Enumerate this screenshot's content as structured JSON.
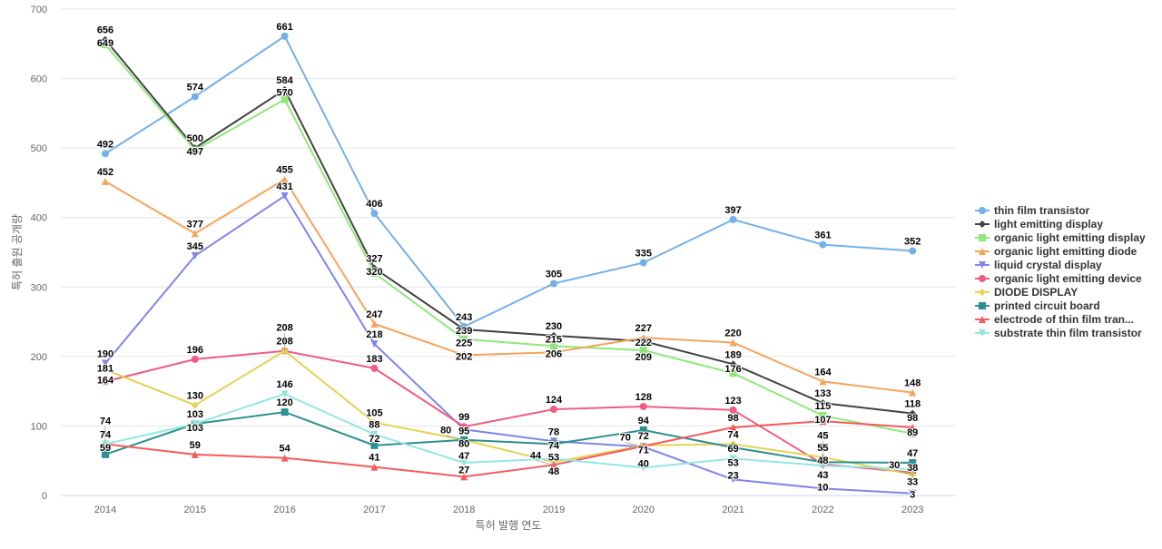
{
  "chart_data": {
    "type": "line",
    "xlabel": "특허 발행 연도",
    "ylabel": "특허 출원 공개량",
    "ylim": [
      0,
      700
    ],
    "yticks": [
      0,
      100,
      200,
      300,
      400,
      500,
      600,
      700
    ],
    "grid": true,
    "legend_position": "right",
    "categories": [
      "2014",
      "2015",
      "2016",
      "2017",
      "2018",
      "2019",
      "2020",
      "2021",
      "2022",
      "2023"
    ],
    "series": [
      {
        "name": "thin film transistor",
        "color": "#74b0ea",
        "marker": "circle",
        "values": [
          492,
          574,
          661,
          406,
          243,
          305,
          335,
          397,
          361,
          352
        ]
      },
      {
        "name": "light emitting display",
        "color": "#424242",
        "marker": "diamond",
        "values": [
          656,
          500,
          584,
          327,
          239,
          230,
          222,
          189,
          133,
          118
        ]
      },
      {
        "name": "organic light emitting display",
        "color": "#90e87a",
        "marker": "square",
        "values": [
          649,
          497,
          570,
          320,
          225,
          215,
          209,
          176,
          115,
          89
        ]
      },
      {
        "name": "organic light emitting diode",
        "color": "#f7a35c",
        "marker": "triangle",
        "values": [
          452,
          377,
          455,
          247,
          202,
          206,
          227,
          220,
          164,
          148
        ]
      },
      {
        "name": "liquid crystal display",
        "color": "#8085e9",
        "marker": "triangle-down",
        "values": [
          190,
          345,
          431,
          218,
          95,
          78,
          70,
          23,
          10,
          3
        ]
      },
      {
        "name": "organic light emitting device",
        "color": "#f15c80",
        "marker": "circle",
        "values": [
          164,
          196,
          208,
          183,
          99,
          124,
          128,
          123,
          45,
          33
        ]
      },
      {
        "name": "DIODE DISPLAY",
        "color": "#e4d354",
        "marker": "diamond",
        "values": [
          181,
          130,
          208,
          105,
          80,
          48,
          72,
          74,
          55,
          30
        ]
      },
      {
        "name": "printed circuit board",
        "color": "#2b908f",
        "marker": "square",
        "values": [
          59,
          103,
          120,
          72,
          80,
          74,
          94,
          69,
          48,
          47
        ]
      },
      {
        "name": "electrode of thin film tran...",
        "color": "#f45b5b",
        "marker": "triangle",
        "values": [
          74,
          59,
          54,
          41,
          27,
          44,
          71,
          98,
          107,
          98
        ]
      },
      {
        "name": "substrate thin film transistor",
        "color": "#91e8e1",
        "marker": "triangle-down",
        "values": [
          74,
          103,
          146,
          88,
          47,
          53,
          40,
          53,
          43,
          38
        ]
      }
    ]
  }
}
